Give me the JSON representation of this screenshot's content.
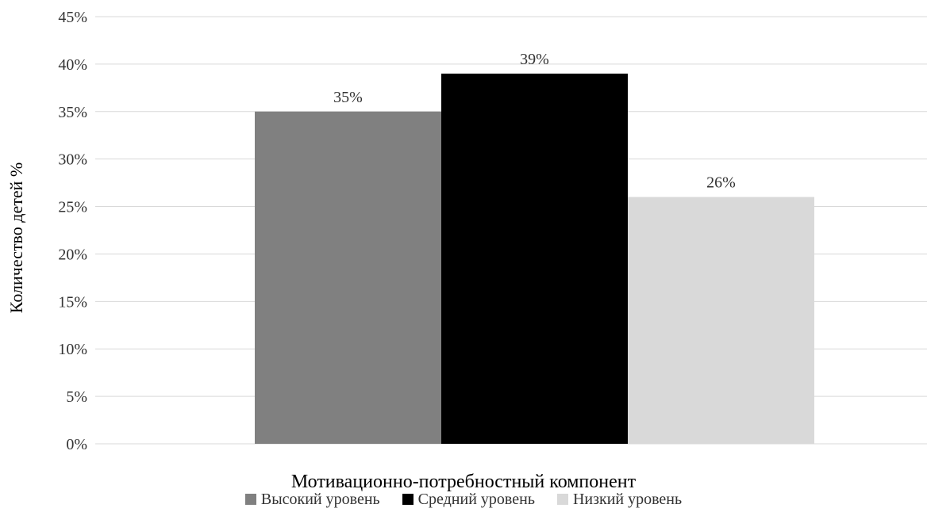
{
  "chart_data": {
    "type": "bar",
    "title": "",
    "xlabel": "Мотивационно-потребностный компонент",
    "ylabel": "Количество детей %",
    "categories": [
      "Мотивационно-потребностный компонент"
    ],
    "series": [
      {
        "name": "Высокий уровень",
        "values": [
          35
        ],
        "color": "#808080",
        "label": "35%"
      },
      {
        "name": "Средний уровень",
        "values": [
          39
        ],
        "color": "#000000",
        "label": "39%"
      },
      {
        "name": "Низкий уровень",
        "values": [
          26
        ],
        "color": "#d9d9d9",
        "label": "26%"
      }
    ],
    "ylim": [
      0,
      45
    ],
    "yticks": [
      "0%",
      "5%",
      "10%",
      "15%",
      "20%",
      "25%",
      "30%",
      "35%",
      "40%",
      "45%"
    ],
    "grid": true,
    "legend_position": "bottom"
  }
}
